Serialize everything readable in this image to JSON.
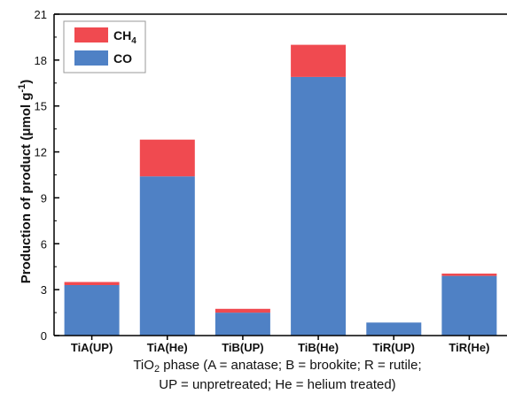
{
  "chart_data": {
    "type": "bar",
    "stacked": true,
    "categories": [
      "TiA(UP)",
      "TiA(He)",
      "TiB(UP)",
      "TiB(He)",
      "TiR(UP)",
      "TiR(He)"
    ],
    "series": [
      {
        "name": "CO",
        "color": "#4f81c5",
        "values": [
          3.3,
          10.4,
          1.5,
          16.9,
          0.85,
          3.9
        ]
      },
      {
        "name": "CH4",
        "color": "#f04a50",
        "values": [
          0.2,
          2.4,
          0.25,
          2.1,
          0.0,
          0.15
        ]
      }
    ],
    "legend": [
      {
        "name": "CH",
        "sub": "4",
        "color": "#f04a50"
      },
      {
        "name": "CO",
        "sub": "",
        "color": "#4f81c5"
      }
    ],
    "legend_position": "top-left",
    "ylabel": {
      "main": "Production of product (",
      "mu": "μ",
      "unit": "mol g",
      "exp": "-1",
      "close": ")"
    },
    "xlabel_line1": {
      "pre": "TiO",
      "sub": "2",
      "post": " phase (A = anatase; B = brookite; R = rutile;"
    },
    "xlabel_line2": "UP = unpretreated; He = helium treated)",
    "ylim": [
      0,
      21
    ],
    "yticks": [
      0,
      3,
      6,
      9,
      12,
      15,
      18,
      21
    ],
    "grid": false
  }
}
